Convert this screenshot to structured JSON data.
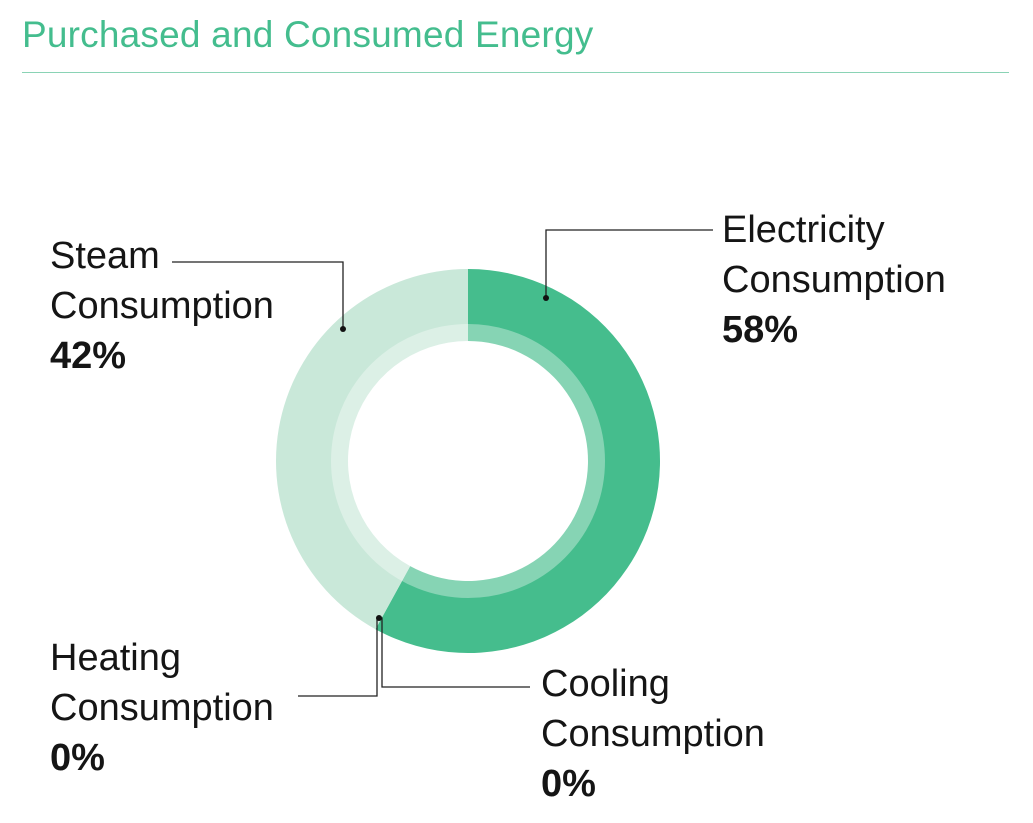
{
  "title": "Purchased and Consumed Energy",
  "colors": {
    "title": "#44bd8e",
    "electricity": "#45bd8d",
    "steam": "#c9e8d9",
    "inner_ring": "#ffffff"
  },
  "chart_data": {
    "type": "pie",
    "style": "donut",
    "title": "Purchased and Consumed Energy",
    "unit": "%",
    "slices": [
      {
        "label": "Electricity Consumption",
        "value": 58,
        "display": "58%"
      },
      {
        "label": "Cooling Consumption",
        "value": 0,
        "display": "0%"
      },
      {
        "label": "Heating Consumption",
        "value": 0,
        "display": "0%"
      },
      {
        "label": "Steam Consumption",
        "value": 42,
        "display": "42%"
      }
    ],
    "legend": "callout-labels"
  },
  "labels": {
    "electricity": {
      "line1": "Electricity",
      "line2": "Consumption",
      "pct": "58%"
    },
    "steam": {
      "line1": "Steam",
      "line2": "Consumption",
      "pct": "42%"
    },
    "heating": {
      "line1": "Heating",
      "line2": "Consumption",
      "pct": "0%"
    },
    "cooling": {
      "line1": "Cooling",
      "line2": "Consumption",
      "pct": "0%"
    }
  }
}
